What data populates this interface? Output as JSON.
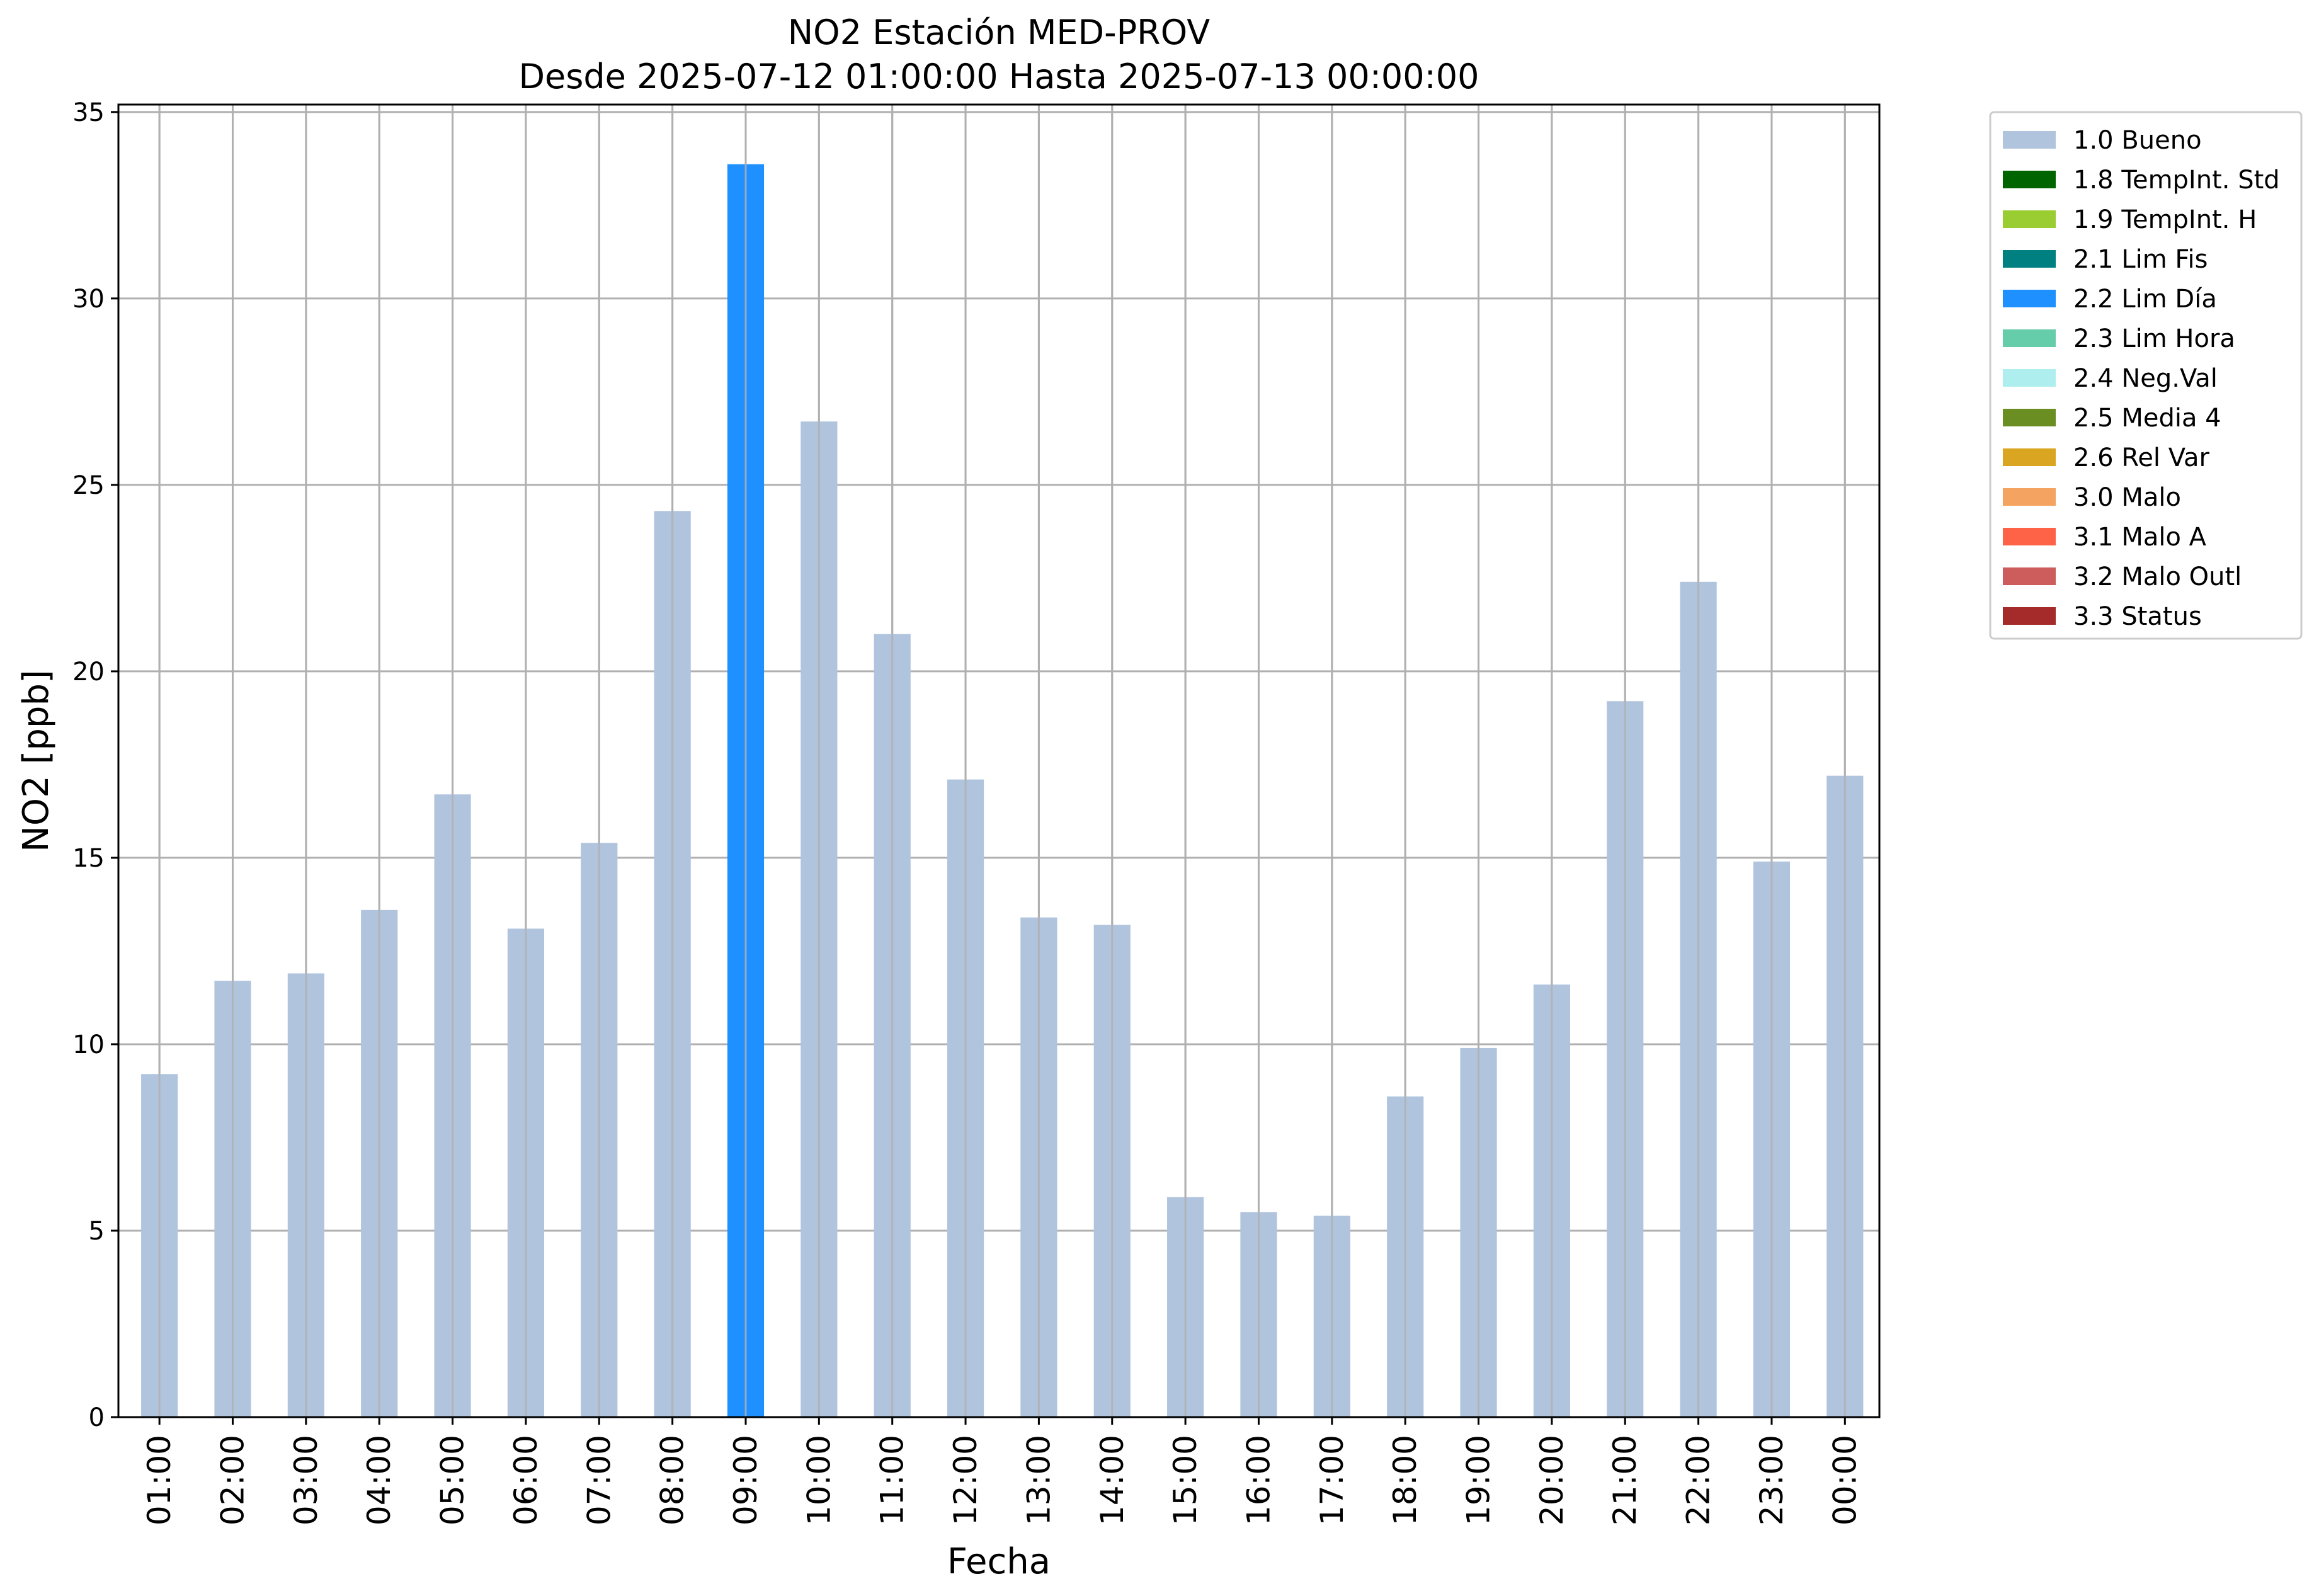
{
  "chart_data": {
    "type": "bar",
    "title": "NO2 Estación MED-PROV",
    "subtitle": "Desde 2025-07-12 01:00:00 Hasta 2025-07-13 00:00:00",
    "xlabel": "Fecha",
    "ylabel": "NO2 [ppb]",
    "ylim": [
      0,
      35.2
    ],
    "yticks": [
      0,
      5,
      10,
      15,
      20,
      25,
      30,
      35
    ],
    "grid": true,
    "legend_position": "outside-right-top",
    "categories": [
      "01:00",
      "02:00",
      "03:00",
      "04:00",
      "05:00",
      "06:00",
      "07:00",
      "08:00",
      "09:00",
      "10:00",
      "11:00",
      "12:00",
      "13:00",
      "14:00",
      "15:00",
      "16:00",
      "17:00",
      "18:00",
      "19:00",
      "20:00",
      "21:00",
      "22:00",
      "23:00",
      "00:00"
    ],
    "values": [
      9.2,
      11.7,
      11.9,
      13.6,
      16.7,
      13.1,
      15.4,
      24.3,
      33.6,
      26.7,
      21.0,
      17.1,
      13.4,
      13.2,
      5.9,
      5.5,
      5.4,
      8.6,
      9.9,
      11.6,
      19.2,
      22.4,
      14.9,
      17.2
    ],
    "flags": [
      "1.0 Bueno",
      "1.0 Bueno",
      "1.0 Bueno",
      "1.0 Bueno",
      "1.0 Bueno",
      "1.0 Bueno",
      "1.0 Bueno",
      "1.0 Bueno",
      "2.2 Lim Día",
      "1.0 Bueno",
      "1.0 Bueno",
      "1.0 Bueno",
      "1.0 Bueno",
      "1.0 Bueno",
      "1.0 Bueno",
      "1.0 Bueno",
      "1.0 Bueno",
      "1.0 Bueno",
      "1.0 Bueno",
      "1.0 Bueno",
      "1.0 Bueno",
      "1.0 Bueno",
      "1.0 Bueno",
      "1.0 Bueno"
    ],
    "legend": [
      {
        "label": "1.0 Bueno",
        "color": "#b0c4de"
      },
      {
        "label": "1.8 TempInt. Std",
        "color": "#006400"
      },
      {
        "label": "1.9 TempInt. H",
        "color": "#9acd32"
      },
      {
        "label": "2.1 Lim Fis",
        "color": "#008080"
      },
      {
        "label": "2.2 Lim Día",
        "color": "#1e90ff"
      },
      {
        "label": "2.3 Lim Hora",
        "color": "#66cdaa"
      },
      {
        "label": "2.4 Neg.Val",
        "color": "#afeeee"
      },
      {
        "label": "2.5 Media 4",
        "color": "#6b8e23"
      },
      {
        "label": "2.6 Rel Var",
        "color": "#daa520"
      },
      {
        "label": "3.0 Malo",
        "color": "#f4a460"
      },
      {
        "label": "3.1 Malo A",
        "color": "#ff6347"
      },
      {
        "label": "3.2 Malo Outl",
        "color": "#cd5c5c"
      },
      {
        "label": "3.3 Status",
        "color": "#a52a2a"
      }
    ]
  }
}
